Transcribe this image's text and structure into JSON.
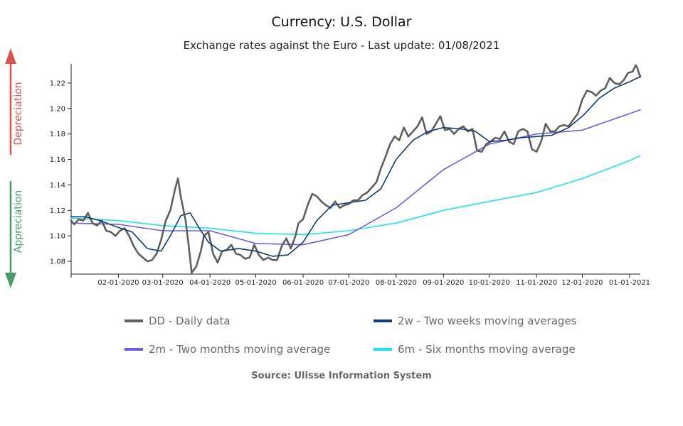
{
  "header": {
    "title": "Currency: U.S. Dollar",
    "subtitle": "Exchange rates against the Euro - Last update: 01/08/2021"
  },
  "side_labels": {
    "top": "Depreciation",
    "bottom": "Appreciation",
    "top_color": "#d9534f",
    "bottom_color": "#4a9a6a"
  },
  "legend": {
    "items": [
      {
        "label": "DD - Daily data",
        "color": "#5f5f5f",
        "icon": "line-swatch"
      },
      {
        "label": "2w - Two weeks moving averages",
        "color": "#0d3d73",
        "icon": "line-swatch"
      },
      {
        "label": "2m - Two months moving average",
        "color": "#6a5de0",
        "icon": "line-swatch"
      },
      {
        "label": "6m - Six months moving average",
        "color": "#1ae6ea",
        "icon": "line-swatch"
      }
    ]
  },
  "footer": {
    "source": "Source: Ulisse Information System"
  },
  "chart_data": {
    "type": "line",
    "title": "Currency: U.S. Dollar",
    "subtitle": "Exchange rates against the Euro - Last update: 01/08/2021",
    "xlabel": "",
    "ylabel": "",
    "x_range": [
      "2020-01-01",
      "2021-01-08"
    ],
    "ylim": [
      1.07,
      1.235
    ],
    "y_ticks": [
      1.08,
      1.1,
      1.12,
      1.14,
      1.16,
      1.18,
      1.2,
      1.22
    ],
    "x_ticks": [
      {
        "date": "2020-02-01",
        "label": "02-01-2020"
      },
      {
        "date": "2020-03-01",
        "label": "03-01-2020"
      },
      {
        "date": "2020-04-01",
        "label": "04-01-2020"
      },
      {
        "date": "2020-05-01",
        "label": "05-01-2020"
      },
      {
        "date": "2020-06-01",
        "label": "06-01-2020"
      },
      {
        "date": "2020-07-01",
        "label": "07-01-2020"
      },
      {
        "date": "2020-08-01",
        "label": "08-01-2020"
      },
      {
        "date": "2020-09-01",
        "label": "09-01-2020"
      },
      {
        "date": "2020-10-01",
        "label": "10-01-2020"
      },
      {
        "date": "2020-11-01",
        "label": "11-01-2020"
      },
      {
        "date": "2020-12-01",
        "label": "12-01-2020"
      },
      {
        "date": "2021-01-01",
        "label": "01-01-2021"
      }
    ],
    "grid": false,
    "legend_position": "bottom",
    "series": [
      {
        "name": "DD - Daily data",
        "color": "#5f5f5f",
        "points": [
          [
            "2020-01-01",
            1.112
          ],
          [
            "2020-01-03",
            1.109
          ],
          [
            "2020-01-06",
            1.113
          ],
          [
            "2020-01-09",
            1.112
          ],
          [
            "2020-01-12",
            1.118
          ],
          [
            "2020-01-15",
            1.11
          ],
          [
            "2020-01-18",
            1.108
          ],
          [
            "2020-01-21",
            1.112
          ],
          [
            "2020-01-24",
            1.104
          ],
          [
            "2020-01-27",
            1.103
          ],
          [
            "2020-01-30",
            1.1
          ],
          [
            "2020-02-02",
            1.104
          ],
          [
            "2020-02-05",
            1.106
          ],
          [
            "2020-02-08",
            1.1
          ],
          [
            "2020-02-11",
            1.092
          ],
          [
            "2020-02-14",
            1.086
          ],
          [
            "2020-02-17",
            1.083
          ],
          [
            "2020-02-20",
            1.08
          ],
          [
            "2020-02-23",
            1.081
          ],
          [
            "2020-02-26",
            1.086
          ],
          [
            "2020-02-29",
            1.097
          ],
          [
            "2020-03-03",
            1.112
          ],
          [
            "2020-03-06",
            1.12
          ],
          [
            "2020-03-09",
            1.136
          ],
          [
            "2020-03-11",
            1.145
          ],
          [
            "2020-03-13",
            1.13
          ],
          [
            "2020-03-16",
            1.112
          ],
          [
            "2020-03-18",
            1.093
          ],
          [
            "2020-03-20",
            1.071
          ],
          [
            "2020-03-23",
            1.076
          ],
          [
            "2020-03-26",
            1.088
          ],
          [
            "2020-03-28",
            1.1
          ],
          [
            "2020-03-31",
            1.103
          ],
          [
            "2020-04-03",
            1.086
          ],
          [
            "2020-04-06",
            1.079
          ],
          [
            "2020-04-09",
            1.088
          ],
          [
            "2020-04-12",
            1.089
          ],
          [
            "2020-04-15",
            1.093
          ],
          [
            "2020-04-18",
            1.086
          ],
          [
            "2020-04-21",
            1.085
          ],
          [
            "2020-04-24",
            1.082
          ],
          [
            "2020-04-27",
            1.083
          ],
          [
            "2020-04-30",
            1.093
          ],
          [
            "2020-05-03",
            1.085
          ],
          [
            "2020-05-06",
            1.081
          ],
          [
            "2020-05-09",
            1.083
          ],
          [
            "2020-05-12",
            1.081
          ],
          [
            "2020-05-15",
            1.081
          ],
          [
            "2020-05-18",
            1.092
          ],
          [
            "2020-05-21",
            1.098
          ],
          [
            "2020-05-24",
            1.09
          ],
          [
            "2020-05-27",
            1.1
          ],
          [
            "2020-05-29",
            1.11
          ],
          [
            "2020-06-01",
            1.113
          ],
          [
            "2020-06-04",
            1.124
          ],
          [
            "2020-06-07",
            1.133
          ],
          [
            "2020-06-10",
            1.131
          ],
          [
            "2020-06-13",
            1.127
          ],
          [
            "2020-06-16",
            1.124
          ],
          [
            "2020-06-19",
            1.122
          ],
          [
            "2020-06-22",
            1.127
          ],
          [
            "2020-06-25",
            1.122
          ],
          [
            "2020-06-28",
            1.124
          ],
          [
            "2020-07-01",
            1.125
          ],
          [
            "2020-07-04",
            1.128
          ],
          [
            "2020-07-07",
            1.128
          ],
          [
            "2020-07-10",
            1.132
          ],
          [
            "2020-07-13",
            1.134
          ],
          [
            "2020-07-16",
            1.138
          ],
          [
            "2020-07-19",
            1.142
          ],
          [
            "2020-07-22",
            1.153
          ],
          [
            "2020-07-25",
            1.162
          ],
          [
            "2020-07-28",
            1.172
          ],
          [
            "2020-07-31",
            1.178
          ],
          [
            "2020-08-03",
            1.175
          ],
          [
            "2020-08-06",
            1.185
          ],
          [
            "2020-08-09",
            1.178
          ],
          [
            "2020-08-12",
            1.182
          ],
          [
            "2020-08-15",
            1.186
          ],
          [
            "2020-08-18",
            1.193
          ],
          [
            "2020-08-21",
            1.18
          ],
          [
            "2020-08-24",
            1.182
          ],
          [
            "2020-08-27",
            1.188
          ],
          [
            "2020-08-30",
            1.194
          ],
          [
            "2020-09-02",
            1.183
          ],
          [
            "2020-09-05",
            1.184
          ],
          [
            "2020-09-08",
            1.18
          ],
          [
            "2020-09-11",
            1.184
          ],
          [
            "2020-09-14",
            1.186
          ],
          [
            "2020-09-17",
            1.182
          ],
          [
            "2020-09-20",
            1.184
          ],
          [
            "2020-09-23",
            1.167
          ],
          [
            "2020-09-26",
            1.166
          ],
          [
            "2020-09-29",
            1.172
          ],
          [
            "2020-10-02",
            1.174
          ],
          [
            "2020-10-05",
            1.177
          ],
          [
            "2020-10-08",
            1.176
          ],
          [
            "2020-10-11",
            1.182
          ],
          [
            "2020-10-14",
            1.174
          ],
          [
            "2020-10-17",
            1.172
          ],
          [
            "2020-10-20",
            1.182
          ],
          [
            "2020-10-23",
            1.184
          ],
          [
            "2020-10-26",
            1.182
          ],
          [
            "2020-10-29",
            1.168
          ],
          [
            "2020-11-01",
            1.166
          ],
          [
            "2020-11-04",
            1.174
          ],
          [
            "2020-11-07",
            1.188
          ],
          [
            "2020-11-10",
            1.182
          ],
          [
            "2020-11-13",
            1.182
          ],
          [
            "2020-11-16",
            1.186
          ],
          [
            "2020-11-19",
            1.187
          ],
          [
            "2020-11-22",
            1.186
          ],
          [
            "2020-11-25",
            1.191
          ],
          [
            "2020-11-28",
            1.196
          ],
          [
            "2020-12-01",
            1.207
          ],
          [
            "2020-12-04",
            1.214
          ],
          [
            "2020-12-07",
            1.213
          ],
          [
            "2020-12-10",
            1.21
          ],
          [
            "2020-12-13",
            1.214
          ],
          [
            "2020-12-16",
            1.216
          ],
          [
            "2020-12-19",
            1.224
          ],
          [
            "2020-12-22",
            1.22
          ],
          [
            "2020-12-25",
            1.219
          ],
          [
            "2020-12-28",
            1.222
          ],
          [
            "2020-12-31",
            1.228
          ],
          [
            "2021-01-03",
            1.229
          ],
          [
            "2021-01-05",
            1.234
          ],
          [
            "2021-01-06",
            1.232
          ],
          [
            "2021-01-07",
            1.228
          ],
          [
            "2021-01-08",
            1.225
          ]
        ]
      },
      {
        "name": "2w - Two weeks moving averages",
        "color": "#0d3d73",
        "points": [
          [
            "2020-01-01",
            1.115
          ],
          [
            "2020-01-10",
            1.115
          ],
          [
            "2020-01-20",
            1.112
          ],
          [
            "2020-01-31",
            1.107
          ],
          [
            "2020-02-10",
            1.103
          ],
          [
            "2020-02-20",
            1.09
          ],
          [
            "2020-02-29",
            1.088
          ],
          [
            "2020-03-06",
            1.1
          ],
          [
            "2020-03-13",
            1.116
          ],
          [
            "2020-03-19",
            1.118
          ],
          [
            "2020-03-25",
            1.106
          ],
          [
            "2020-03-31",
            1.095
          ],
          [
            "2020-04-08",
            1.088
          ],
          [
            "2020-04-20",
            1.09
          ],
          [
            "2020-05-01",
            1.088
          ],
          [
            "2020-05-12",
            1.084
          ],
          [
            "2020-05-22",
            1.085
          ],
          [
            "2020-06-01",
            1.095
          ],
          [
            "2020-06-10",
            1.112
          ],
          [
            "2020-06-20",
            1.124
          ],
          [
            "2020-07-01",
            1.126
          ],
          [
            "2020-07-12",
            1.128
          ],
          [
            "2020-07-22",
            1.137
          ],
          [
            "2020-08-01",
            1.16
          ],
          [
            "2020-08-12",
            1.175
          ],
          [
            "2020-08-22",
            1.182
          ],
          [
            "2020-09-01",
            1.185
          ],
          [
            "2020-09-12",
            1.184
          ],
          [
            "2020-09-22",
            1.182
          ],
          [
            "2020-10-01",
            1.174
          ],
          [
            "2020-10-12",
            1.175
          ],
          [
            "2020-10-22",
            1.177
          ],
          [
            "2020-11-01",
            1.178
          ],
          [
            "2020-11-11",
            1.179
          ],
          [
            "2020-11-22",
            1.185
          ],
          [
            "2020-12-02",
            1.195
          ],
          [
            "2020-12-12",
            1.208
          ],
          [
            "2020-12-22",
            1.216
          ],
          [
            "2021-01-01",
            1.221
          ],
          [
            "2021-01-08",
            1.225
          ]
        ]
      },
      {
        "name": "2m - Two months moving average",
        "color": "#6a5de0",
        "points": [
          [
            "2020-01-01",
            1.11
          ],
          [
            "2020-02-01",
            1.109
          ],
          [
            "2020-03-01",
            1.104
          ],
          [
            "2020-04-01",
            1.104
          ],
          [
            "2020-05-01",
            1.094
          ],
          [
            "2020-06-01",
            1.093
          ],
          [
            "2020-07-01",
            1.101
          ],
          [
            "2020-08-01",
            1.122
          ],
          [
            "2020-09-01",
            1.152
          ],
          [
            "2020-10-01",
            1.172
          ],
          [
            "2020-11-01",
            1.18
          ],
          [
            "2020-12-01",
            1.183
          ],
          [
            "2021-01-01",
            1.196
          ],
          [
            "2021-01-08",
            1.199
          ]
        ]
      },
      {
        "name": "6m - Six months moving average",
        "color": "#1ae6ea",
        "points": [
          [
            "2020-01-01",
            1.114
          ],
          [
            "2020-02-01",
            1.112
          ],
          [
            "2020-03-01",
            1.108
          ],
          [
            "2020-04-01",
            1.106
          ],
          [
            "2020-05-01",
            1.102
          ],
          [
            "2020-06-01",
            1.101
          ],
          [
            "2020-07-01",
            1.104
          ],
          [
            "2020-08-01",
            1.11
          ],
          [
            "2020-09-01",
            1.12
          ],
          [
            "2020-10-01",
            1.127
          ],
          [
            "2020-11-01",
            1.134
          ],
          [
            "2020-12-01",
            1.145
          ],
          [
            "2021-01-01",
            1.159
          ],
          [
            "2021-01-08",
            1.163
          ]
        ]
      }
    ]
  }
}
